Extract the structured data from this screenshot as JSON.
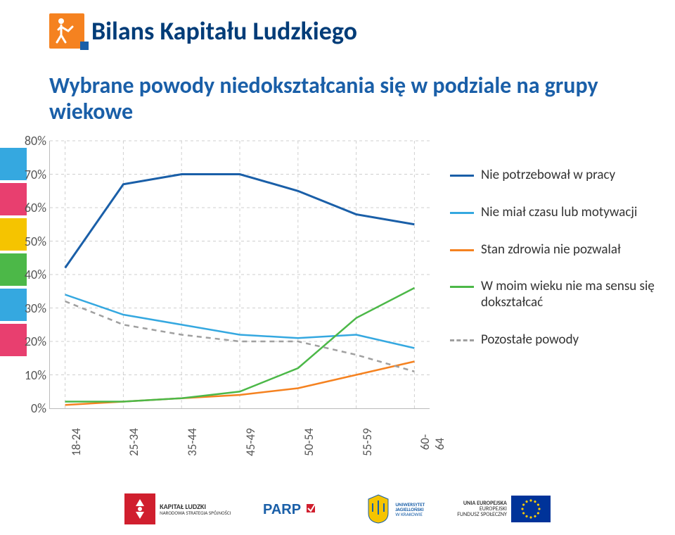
{
  "header": {
    "title": "Bilans Kapitału Ludzkiego"
  },
  "subtitle": "Wybrane powody niedokształcania się w podziale na grupy wiekowe",
  "side_bars": [
    "#35a8e0",
    "#e83f6f",
    "#f5c400",
    "#4cb848",
    "#35a8e0",
    "#e83f6f"
  ],
  "chart": {
    "type": "line",
    "x_categories": [
      "18-24",
      "25-34",
      "35-44",
      "45-49",
      "50-54",
      "55-59",
      "60-64"
    ],
    "y_ticks": [
      0,
      10,
      20,
      30,
      40,
      50,
      60,
      70,
      80
    ],
    "ylim": [
      0,
      80
    ],
    "grid_color": "#cfcfcf",
    "series": [
      {
        "name": "Nie potrzebował w pracy",
        "color": "#1a5fa8",
        "width": 3,
        "dash": false,
        "values": [
          42,
          67,
          70,
          70,
          65,
          58,
          55
        ]
      },
      {
        "name": "Nie miał czasu lub motywacji",
        "color": "#35a8e0",
        "width": 2.5,
        "dash": false,
        "values": [
          34,
          28,
          25,
          22,
          21,
          22,
          18
        ]
      },
      {
        "name": "Stan zdrowia nie pozwalał",
        "color": "#f58220",
        "width": 2.5,
        "dash": false,
        "values": [
          1,
          2,
          3,
          4,
          6,
          10,
          14
        ]
      },
      {
        "name": "W moim wieku nie ma sensu się dokształcać",
        "color": "#4cb848",
        "width": 2.5,
        "dash": false,
        "values": [
          2,
          2,
          3,
          5,
          12,
          27,
          36
        ]
      },
      {
        "name": "Pozostałe powody",
        "color": "#a0a0a0",
        "width": 2.5,
        "dash": true,
        "values": [
          32,
          25,
          22,
          20,
          20,
          16,
          11
        ]
      }
    ],
    "label_fontsize": 18,
    "background_color": "#ffffff"
  },
  "footer_logos": [
    "KAPITAŁ LUDZKI · NARODOWA STRATEGIA SPÓJNOŚCI",
    "PARP",
    "UNIWERSYTET JAGIELLOŃSKI W KRAKOWIE",
    "UNIA EUROPEJSKA · EUROPEJSKI FUNDUSZ SPOŁECZNY"
  ]
}
